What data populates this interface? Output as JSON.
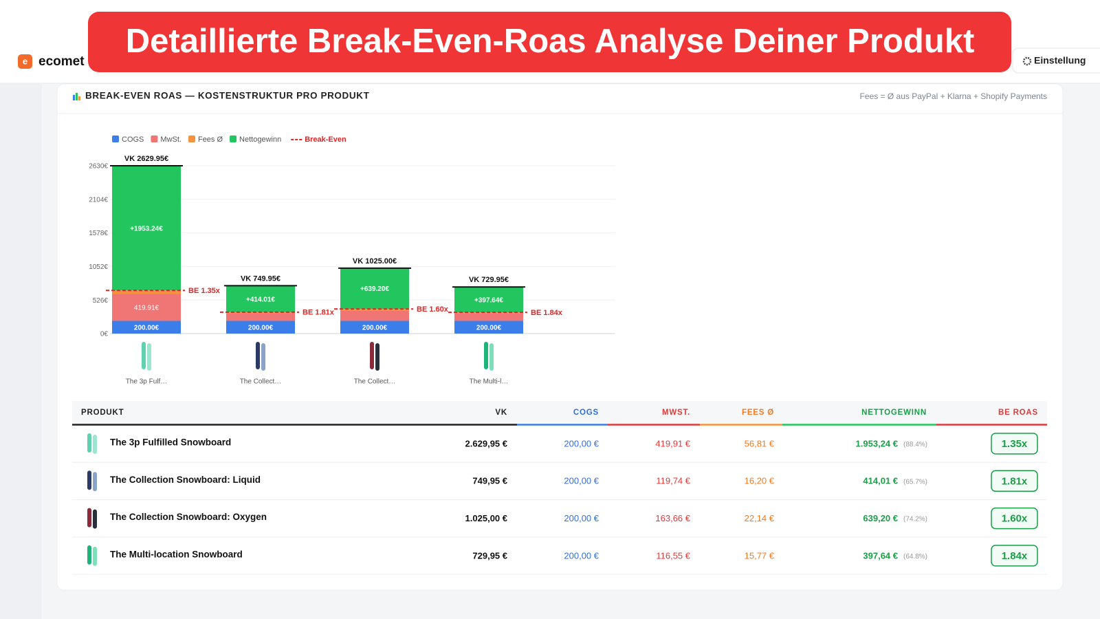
{
  "banner": "Detaillierte Break-Even-Roas Analyse Deiner Produkt",
  "app": {
    "logo": "e",
    "name": "ecomet",
    "settings": "Einstellung"
  },
  "panel": {
    "title": "BREAK-EVEN ROAS — KOSTENSTRUKTUR PRO PRODUKT",
    "note": "Fees = Ø aus PayPal + Klarna + Shopify Payments"
  },
  "chart_data": {
    "type": "stacked_bar",
    "categories": [
      "The 3p Fulf…",
      "The Collect…",
      "The Collect…",
      "The Multi-l…"
    ],
    "series": [
      {
        "name": "COGS",
        "color": "#3b7de9",
        "values": [
          200,
          200,
          200,
          200
        ],
        "value_labels": [
          "200.00€",
          "200.00€",
          "200.00€",
          "200.00€"
        ]
      },
      {
        "name": "MwSt.",
        "color": "#f07575",
        "values": [
          419.91,
          119.74,
          163.66,
          116.55
        ],
        "value_labels": [
          "419.91€",
          null,
          null,
          null
        ]
      },
      {
        "name": "Fees Ø",
        "color": "#f5923e",
        "values": [
          56.81,
          16.2,
          22.14,
          15.77
        ],
        "value_labels": [
          null,
          null,
          null,
          null
        ]
      },
      {
        "name": "Nettogewinn",
        "color": "#22c55e",
        "values": [
          1953.24,
          414.01,
          639.2,
          397.64
        ],
        "value_labels": [
          "+1953.24€",
          "+414.01€",
          "+639.20€",
          "+397.64€"
        ]
      }
    ],
    "totals": {
      "values": [
        2629.95,
        749.95,
        1025,
        729.95
      ],
      "value_labels": [
        "VK 2629.95€",
        "VK 749.95€",
        "VK 1025.00€",
        "VK 729.95€"
      ]
    },
    "break_even": {
      "name": "Break-Even",
      "color": "#dc2626",
      "values": [
        1.35,
        1.81,
        1.6,
        1.84
      ],
      "value_labels": [
        "BE 1.35x",
        "BE 1.81x",
        "BE 1.60x",
        "BE 1.84x"
      ]
    },
    "ylim": [
      0,
      2630
    ],
    "yticks": [
      {
        "value": 0,
        "label": "0€"
      },
      {
        "value": 526,
        "label": "526€"
      },
      {
        "value": 1052,
        "label": "1052€"
      },
      {
        "value": 1578,
        "label": "1578€"
      },
      {
        "value": 2104,
        "label": "2104€"
      },
      {
        "value": 2630,
        "label": "2630€"
      }
    ],
    "grid": true
  },
  "table": {
    "headers": [
      "PRODUKT",
      "VK",
      "COGS",
      "MWST.",
      "FEES Ø",
      "NETTOGEWINN",
      "BE ROAS"
    ],
    "rows": [
      [
        "The 3p Fulfilled Snowboard",
        "2.629,95 €",
        "200,00 €",
        "419,91 €",
        "56,81 €",
        "1.953,24 €",
        "(88.4%)",
        "1.35x"
      ],
      [
        "The Collection Snowboard: Liquid",
        "749,95 €",
        "200,00 €",
        "119,74 €",
        "16,20 €",
        "414,01 €",
        "(65.7%)",
        "1.81x"
      ],
      [
        "The Collection Snowboard: Oxygen",
        "1.025,00 €",
        "200,00 €",
        "163,66 €",
        "22,14 €",
        "639,20 €",
        "(74.2%)",
        "1.60x"
      ],
      [
        "The Multi-location Snowboard",
        "729,95 €",
        "200,00 €",
        "116,55 €",
        "15,77 €",
        "397,64 €",
        "(64.8%)",
        "1.84x"
      ]
    ]
  }
}
